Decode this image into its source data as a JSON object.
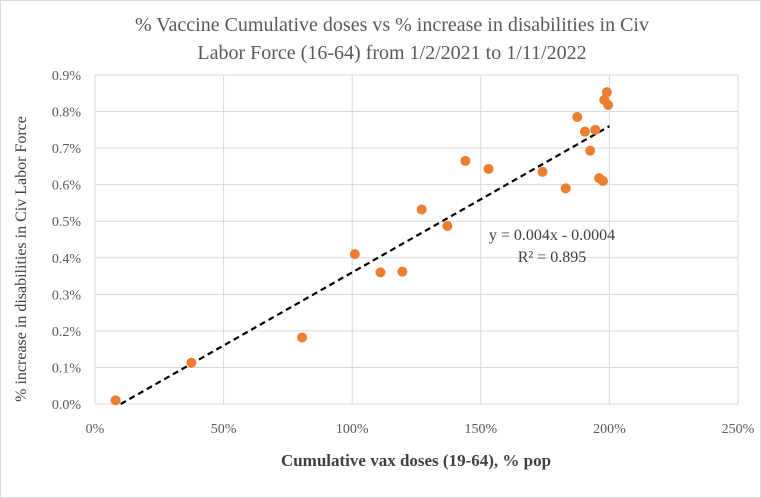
{
  "chart_data": {
    "type": "scatter",
    "title_lines": [
      "% Vaccine Cumulative doses vs % increase in disabilities in Civ",
      "Labor Force (16-64) from 1/2/2021 to 1/11/2022"
    ],
    "xlabel": "Cumulative vax doses (19-64), % pop",
    "ylabel": "% increase in disabilities in Civ Labor Force",
    "xlim": [
      0,
      2.5
    ],
    "ylim": [
      0,
      0.009
    ],
    "x_ticks": [
      0,
      0.5,
      1.0,
      1.5,
      2.0,
      2.5
    ],
    "x_tick_labels": [
      "0%",
      "50%",
      "100%",
      "150%",
      "200%",
      "250%"
    ],
    "y_ticks": [
      0,
      0.001,
      0.002,
      0.003,
      0.004,
      0.005,
      0.006,
      0.007,
      0.008,
      0.009
    ],
    "y_tick_labels": [
      "0.0%",
      "0.1%",
      "0.2%",
      "0.3%",
      "0.4%",
      "0.5%",
      "0.6%",
      "0.7%",
      "0.8%",
      "0.9%"
    ],
    "grid": true,
    "point_color": "#ed7d31",
    "trendline_color": "#000000",
    "points": [
      {
        "x": 0.08,
        "y": 0.0001
      },
      {
        "x": 0.375,
        "y": 0.00113
      },
      {
        "x": 0.805,
        "y": 0.00182
      },
      {
        "x": 1.01,
        "y": 0.0041
      },
      {
        "x": 1.11,
        "y": 0.0036
      },
      {
        "x": 1.195,
        "y": 0.00362
      },
      {
        "x": 1.27,
        "y": 0.00532
      },
      {
        "x": 1.37,
        "y": 0.00487
      },
      {
        "x": 1.44,
        "y": 0.00665
      },
      {
        "x": 1.53,
        "y": 0.00643
      },
      {
        "x": 1.74,
        "y": 0.00635
      },
      {
        "x": 1.83,
        "y": 0.0059
      },
      {
        "x": 1.875,
        "y": 0.00785
      },
      {
        "x": 1.905,
        "y": 0.00745
      },
      {
        "x": 1.925,
        "y": 0.00693
      },
      {
        "x": 1.945,
        "y": 0.0075
      },
      {
        "x": 1.96,
        "y": 0.00618
      },
      {
        "x": 1.975,
        "y": 0.0061
      },
      {
        "x": 1.98,
        "y": 0.00832
      },
      {
        "x": 1.99,
        "y": 0.00853
      },
      {
        "x": 1.995,
        "y": 0.00818
      }
    ],
    "trendline": {
      "x_start": 0.1,
      "x_end": 2.0,
      "slope": 0.004,
      "intercept": -0.0004,
      "equation": "y = 0.004x - 0.0004",
      "r_squared": "R² = 0.895"
    }
  }
}
